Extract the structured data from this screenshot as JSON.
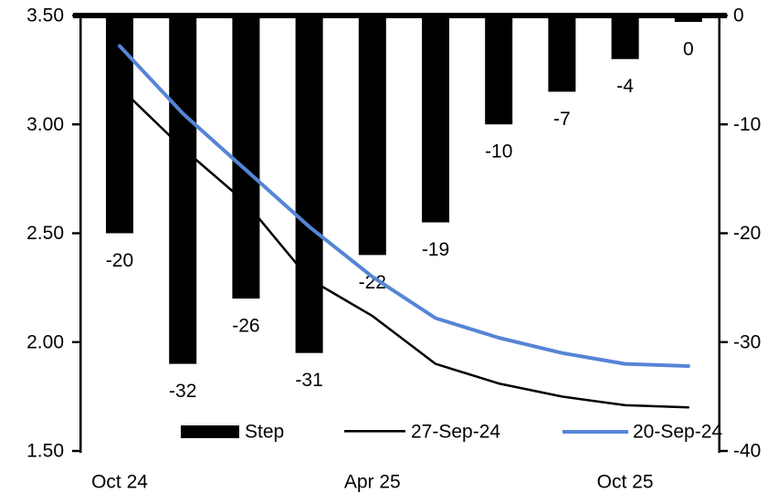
{
  "chart_data": {
    "type": "combo-bar-line",
    "title": "",
    "x_count": 10,
    "x_axis": {
      "tick_labels": [
        {
          "index": 0,
          "label": "Oct 24"
        },
        {
          "index": 4,
          "label": "Apr 25"
        },
        {
          "index": 8,
          "label": "Oct 25"
        }
      ]
    },
    "left_axis": {
      "min": 1.5,
      "max": 3.5,
      "tick_labels": [
        "3.50",
        "3.00",
        "2.50",
        "2.00",
        "1.50"
      ],
      "tick_values": [
        3.5,
        3.0,
        2.5,
        2.0,
        1.5
      ]
    },
    "right_axis": {
      "min": -40,
      "max": 0,
      "tick_labels": [
        "0",
        "-10",
        "-20",
        "-30",
        "-40"
      ],
      "tick_values": [
        0,
        -10,
        -20,
        -30,
        -40
      ]
    },
    "bar_series": {
      "name": "Step",
      "axis": "right",
      "color": "#000000",
      "values": [
        -20,
        -32,
        -26,
        -31,
        -22,
        -19,
        -10,
        -7,
        -4,
        0
      ],
      "labels": [
        "-20",
        "-32",
        "-26",
        "-31",
        "-22",
        "-19",
        "-10",
        "-7",
        "-4",
        "0"
      ]
    },
    "line_series": [
      {
        "name": "27-Sep-24",
        "axis": "left",
        "color": "#000000",
        "stroke_width": 2.5,
        "values": [
          3.17,
          2.89,
          2.64,
          2.29,
          2.12,
          1.9,
          1.81,
          1.75,
          1.71,
          1.7
        ]
      },
      {
        "name": "20-Sep-24",
        "axis": "left",
        "color": "#5585D6",
        "stroke_width": 4,
        "values": [
          3.36,
          3.05,
          2.79,
          2.53,
          2.3,
          2.11,
          2.02,
          1.95,
          1.9,
          1.89
        ]
      }
    ],
    "legend": [
      {
        "label": "Step",
        "swatch": "bar",
        "color": "#000000"
      },
      {
        "label": "27-Sep-24",
        "swatch": "line",
        "color": "#000000"
      },
      {
        "label": "20-Sep-24",
        "swatch": "line",
        "color": "#5585D6"
      }
    ],
    "grid": false,
    "legend_position": "bottom-inside"
  }
}
